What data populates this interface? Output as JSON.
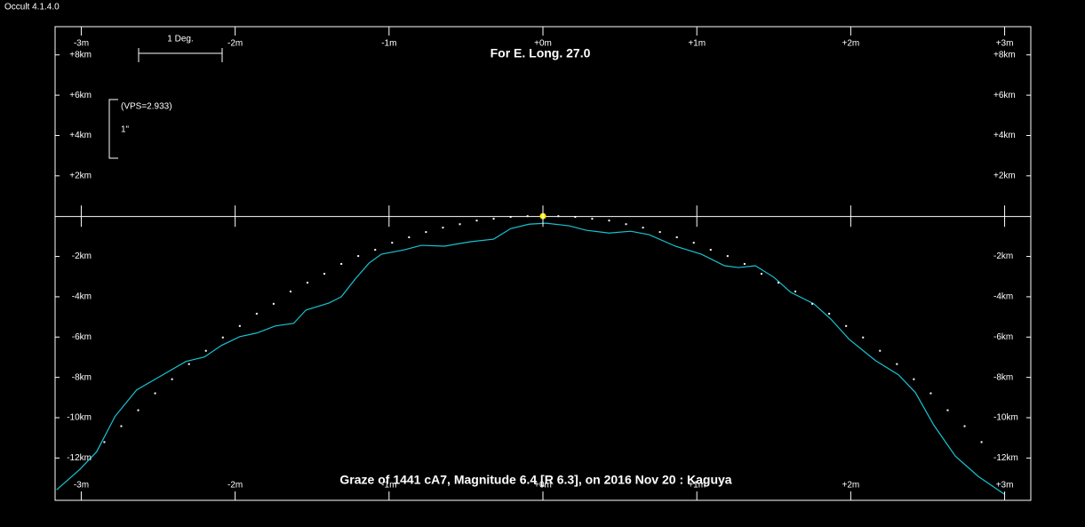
{
  "window_title": "Occult 4.1.4.0",
  "chart_data": {
    "type": "line",
    "title": "Graze of  1441 cA7,  Magnitude 6.4 [R 6.3],  on 2016 Nov 20  :  Kaguya",
    "subtitle": "For E. Long. 27.0",
    "scale_label": "1 Deg.",
    "vps_label": "(VPS=2.933)",
    "arcsec_label": "1\"",
    "xlim": [
      -3.17,
      3.17
    ],
    "ylim": [
      -14.1,
      9.4
    ],
    "xticks": [
      {
        "value": -3,
        "label": "-3m"
      },
      {
        "value": -2,
        "label": "-2m"
      },
      {
        "value": -1,
        "label": "-1m"
      },
      {
        "value": 0,
        "label": "+0m"
      },
      {
        "value": 1,
        "label": "+1m"
      },
      {
        "value": 2,
        "label": "+2m"
      },
      {
        "value": 3,
        "label": "+3m"
      }
    ],
    "yticks": [
      {
        "value": 8,
        "label": "+8km"
      },
      {
        "value": 6,
        "label": "+6km"
      },
      {
        "value": 4,
        "label": "+4km"
      },
      {
        "value": 2,
        "label": "+2km"
      },
      {
        "value": -2,
        "label": "-2km"
      },
      {
        "value": -4,
        "label": "-4km"
      },
      {
        "value": -6,
        "label": "-6km"
      },
      {
        "value": -8,
        "label": "-8km"
      },
      {
        "value": -10,
        "label": "-10km"
      },
      {
        "value": -12,
        "label": "-12km"
      }
    ],
    "series": [
      {
        "color": "#19c3d2",
        "style": "line",
        "x": [
          -3.16,
          -3.01,
          -2.9,
          -2.78,
          -2.64,
          -2.49,
          -2.32,
          -2.2,
          -2.09,
          -1.97,
          -1.86,
          -1.74,
          -1.62,
          -1.54,
          -1.39,
          -1.31,
          -1.22,
          -1.13,
          -1.05,
          -0.9,
          -0.79,
          -0.64,
          -0.47,
          -0.32,
          -0.21,
          -0.09,
          0.02,
          0.17,
          0.28,
          0.43,
          0.57,
          0.69,
          0.86,
          1.03,
          1.18,
          1.27,
          1.38,
          1.5,
          1.61,
          1.76,
          1.87,
          1.99,
          2.16,
          2.31,
          2.42,
          2.54,
          2.68,
          2.83,
          3.0
        ],
        "values": [
          -13.58,
          -12.57,
          -11.69,
          -9.93,
          -8.62,
          -7.96,
          -7.21,
          -6.99,
          -6.42,
          -5.98,
          -5.8,
          -5.45,
          -5.32,
          -4.66,
          -4.31,
          -4.0,
          -3.12,
          -2.33,
          -1.89,
          -1.67,
          -1.45,
          -1.49,
          -1.27,
          -1.14,
          -0.62,
          -0.4,
          -0.35,
          -0.48,
          -0.7,
          -0.84,
          -0.75,
          -0.92,
          -1.49,
          -1.89,
          -2.46,
          -2.55,
          -2.46,
          -3.03,
          -3.78,
          -4.35,
          -5.1,
          -6.11,
          -7.16,
          -7.87,
          -8.75,
          -10.37,
          -11.91,
          -12.92,
          -13.8
        ]
      },
      {
        "color": "#ffffff",
        "style": "dots",
        "x": [
          -2.85,
          -2.74,
          -2.63,
          -2.52,
          -2.41,
          -2.3,
          -2.19,
          -2.08,
          -1.97,
          -1.86,
          -1.75,
          -1.64,
          -1.53,
          -1.42,
          -1.31,
          -1.2,
          -1.09,
          -0.98,
          -0.87,
          -0.76,
          -0.65,
          -0.54,
          -0.43,
          -0.32,
          -0.21,
          -0.1,
          0.1,
          0.21,
          0.32,
          0.43,
          0.54,
          0.65,
          0.76,
          0.87,
          0.98,
          1.09,
          1.2,
          1.31,
          1.42,
          1.53,
          1.64,
          1.75,
          1.86,
          1.97,
          2.08,
          2.19,
          2.3,
          2.41,
          2.52,
          2.63,
          2.74,
          2.85
        ],
        "values": [
          -11.21,
          -10.42,
          -9.63,
          -8.79,
          -8.09,
          -7.34,
          -6.68,
          -6.02,
          -5.45,
          -4.84,
          -4.35,
          -3.74,
          -3.3,
          -2.86,
          -2.37,
          -1.98,
          -1.67,
          -1.32,
          -1.05,
          -0.79,
          -0.57,
          -0.4,
          -0.22,
          -0.13,
          -0.04,
          0,
          0,
          -0.04,
          -0.13,
          -0.22,
          -0.4,
          -0.57,
          -0.79,
          -1.05,
          -1.32,
          -1.67,
          -1.98,
          -2.37,
          -2.86,
          -3.3,
          -3.74,
          -4.35,
          -4.84,
          -5.45,
          -6.02,
          -6.68,
          -7.34,
          -8.09,
          -8.79,
          -9.63,
          -10.42,
          -11.21
        ]
      },
      {
        "color": "#ffee00",
        "style": "star",
        "x": [
          0
        ],
        "values": [
          0
        ]
      }
    ]
  }
}
